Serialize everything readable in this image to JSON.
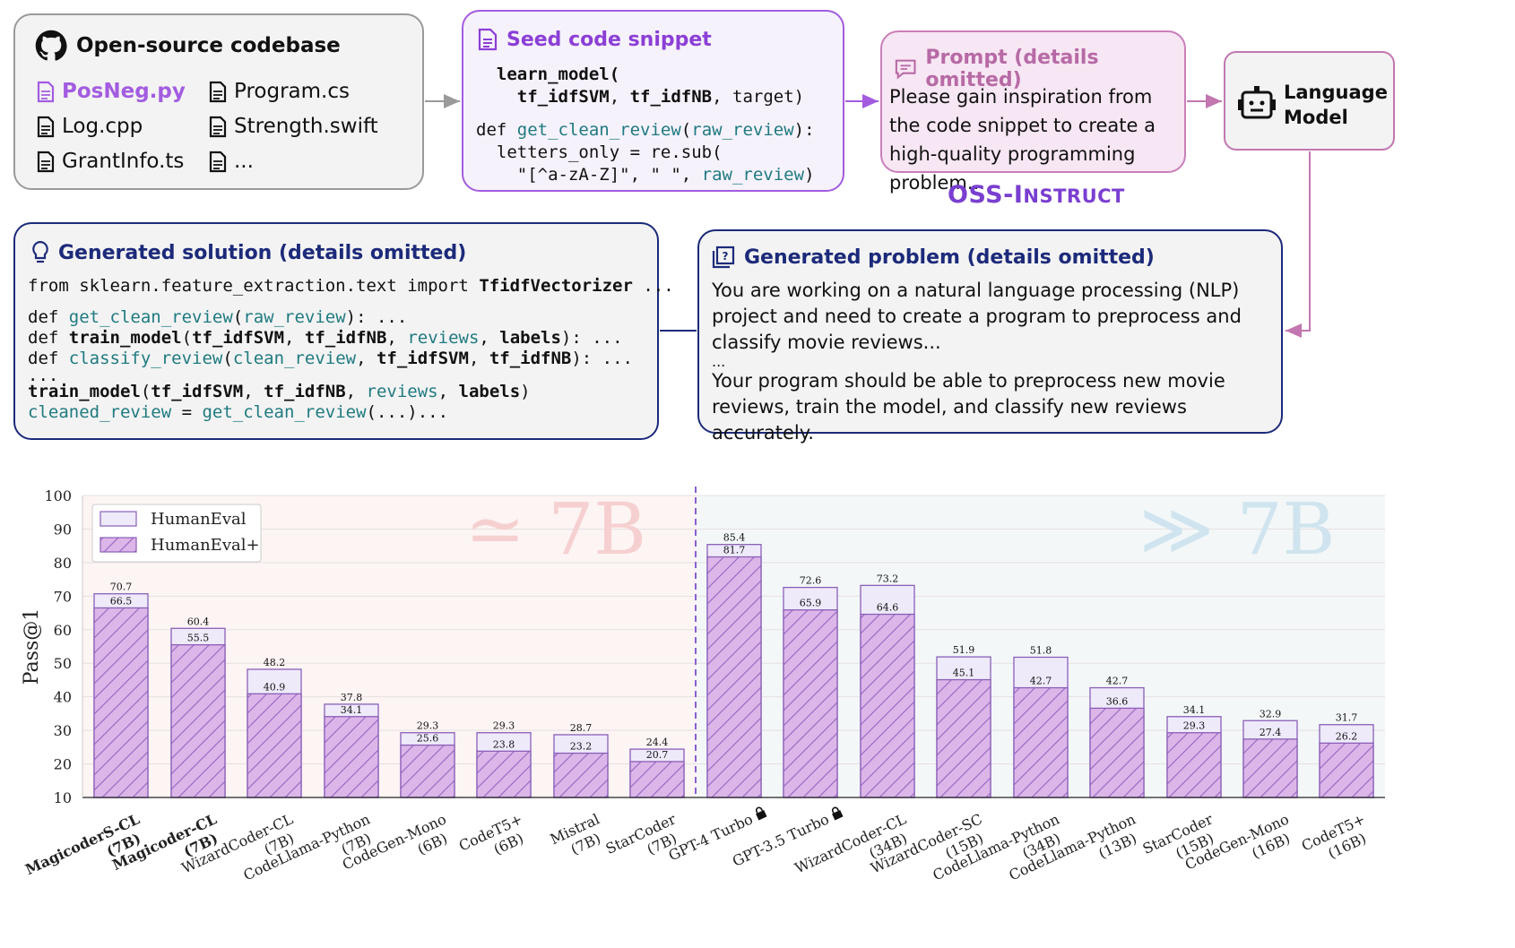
{
  "codebase": {
    "title": "Open-source codebase",
    "files": [
      {
        "name": "PosNeg.py",
        "highlight": true
      },
      {
        "name": "Program.cs",
        "highlight": false
      },
      {
        "name": "Log.cpp",
        "highlight": false
      },
      {
        "name": "Strength.swift",
        "highlight": false
      },
      {
        "name": "GrantInfo.ts",
        "highlight": false
      },
      {
        "name": "...",
        "highlight": false
      }
    ]
  },
  "seed": {
    "title": "Seed code snippet",
    "lines": [
      [
        {
          "t": "  "
        },
        {
          "t": "learn_model(",
          "s": "bold"
        }
      ],
      [
        {
          "t": "    "
        },
        {
          "t": "tf_idfSVM",
          "s": "bold"
        },
        {
          "t": ", "
        },
        {
          "t": "tf_idfNB",
          "s": "bold"
        },
        {
          "t": ", target)"
        }
      ],
      [
        {
          "t": ""
        }
      ],
      [
        {
          "t": "def "
        },
        {
          "t": "get_clean_review",
          "s": "teal"
        },
        {
          "t": "("
        },
        {
          "t": "raw_review",
          "s": "teal"
        },
        {
          "t": "):"
        }
      ],
      [
        {
          "t": "  letters_only = re.sub("
        }
      ],
      [
        {
          "t": "    \"[^a-zA-Z]\", \" \", "
        },
        {
          "t": "raw_review",
          "s": "teal"
        },
        {
          "t": ")"
        }
      ]
    ]
  },
  "prompt": {
    "title": "Prompt (details omitted)",
    "text": "Please gain inspiration from the code snippet to create a high-quality programming problem..."
  },
  "language_model": {
    "line1": "Language",
    "line2": "Model"
  },
  "oss_label": {
    "prefix": "OSS-",
    "big": "I",
    "rest": "NSTRUCT"
  },
  "solution": {
    "title": "Generated solution (details omitted)",
    "lines": [
      [
        {
          "t": "from sklearn.feature_extraction.text import "
        },
        {
          "t": "TfidfVectorizer",
          "s": "bold"
        },
        {
          "t": " ..."
        }
      ],
      [
        {
          "t": ""
        }
      ],
      [
        {
          "t": "def "
        },
        {
          "t": "get_clean_review",
          "s": "teal"
        },
        {
          "t": "("
        },
        {
          "t": "raw_review",
          "s": "teal"
        },
        {
          "t": "): ..."
        }
      ],
      [
        {
          "t": "def "
        },
        {
          "t": "train_model",
          "s": "bold"
        },
        {
          "t": "("
        },
        {
          "t": "tf_idfSVM",
          "s": "bold"
        },
        {
          "t": ", "
        },
        {
          "t": "tf_idfNB",
          "s": "bold"
        },
        {
          "t": ", "
        },
        {
          "t": "reviews",
          "s": "teal"
        },
        {
          "t": ", "
        },
        {
          "t": "labels",
          "s": "bold"
        },
        {
          "t": "): ..."
        }
      ],
      [
        {
          "t": "def "
        },
        {
          "t": "classify_review",
          "s": "teal"
        },
        {
          "t": "("
        },
        {
          "t": "clean_review",
          "s": "teal"
        },
        {
          "t": ", "
        },
        {
          "t": "tf_idfSVM",
          "s": "bold"
        },
        {
          "t": ", "
        },
        {
          "t": "tf_idfNB",
          "s": "bold"
        },
        {
          "t": "): ..."
        }
      ],
      [
        {
          "t": "..."
        }
      ],
      [
        {
          "t": "train_model",
          "s": "bold"
        },
        {
          "t": "("
        },
        {
          "t": "tf_idfSVM",
          "s": "bold"
        },
        {
          "t": ", "
        },
        {
          "t": "tf_idfNB",
          "s": "bold"
        },
        {
          "t": ", "
        },
        {
          "t": "reviews",
          "s": "teal"
        },
        {
          "t": ", "
        },
        {
          "t": "labels",
          "s": "bold"
        },
        {
          "t": ")"
        }
      ],
      [
        {
          "t": "cleaned_review",
          "s": "teal"
        },
        {
          "t": " = "
        },
        {
          "t": "get_clean_review",
          "s": "teal"
        },
        {
          "t": "(...)..."
        }
      ]
    ]
  },
  "problem": {
    "title": "Generated problem (details omitted)",
    "para1": "You are working on a natural language processing (NLP) project and need to create a program to preprocess and classify movie reviews...",
    "ellipsis": "...",
    "para2": "Your program should be able to preprocess new movie reviews, train the model, and classify new reviews accurately."
  },
  "chart_data": {
    "type": "bar",
    "ylabel": "Pass@1",
    "ylim": [
      10,
      100
    ],
    "yticks": [
      10,
      20,
      30,
      40,
      50,
      60,
      70,
      80,
      90,
      100
    ],
    "legend": {
      "placement": "top-left",
      "entries": [
        "HumanEval",
        "HumanEval+"
      ]
    },
    "region_labels": [
      "≃ 7B",
      "≫ 7B"
    ],
    "categories": [
      {
        "name": "MagicoderS-CL",
        "size": "(7B)",
        "bold": true,
        "lock": false
      },
      {
        "name": "Magicoder-CL",
        "size": "(7B)",
        "bold": true,
        "lock": false
      },
      {
        "name": "WizardCoder-CL",
        "size": "(7B)",
        "bold": false,
        "lock": false
      },
      {
        "name": "CodeLlama-Python",
        "size": "(7B)",
        "bold": false,
        "lock": false
      },
      {
        "name": "CodeGen-Mono",
        "size": "(6B)",
        "bold": false,
        "lock": false
      },
      {
        "name": "CodeT5+",
        "size": "(6B)",
        "bold": false,
        "lock": false
      },
      {
        "name": "Mistral",
        "size": "(7B)",
        "bold": false,
        "lock": false
      },
      {
        "name": "StarCoder",
        "size": "(7B)",
        "bold": false,
        "lock": false
      },
      {
        "name": "GPT-4 Turbo",
        "size": "",
        "bold": false,
        "lock": true
      },
      {
        "name": "GPT-3.5 Turbo",
        "size": "",
        "bold": false,
        "lock": true
      },
      {
        "name": "WizardCoder-CL",
        "size": "(34B)",
        "bold": false,
        "lock": false
      },
      {
        "name": "WizardCoder-SC",
        "size": "(15B)",
        "bold": false,
        "lock": false
      },
      {
        "name": "CodeLlama-Python",
        "size": "(34B)",
        "bold": false,
        "lock": false
      },
      {
        "name": "CodeLlama-Python",
        "size": "(13B)",
        "bold": false,
        "lock": false
      },
      {
        "name": "StarCoder",
        "size": "(15B)",
        "bold": false,
        "lock": false
      },
      {
        "name": "CodeGen-Mono",
        "size": "(16B)",
        "bold": false,
        "lock": false
      },
      {
        "name": "CodeT5+",
        "size": "(16B)",
        "bold": false,
        "lock": false
      }
    ],
    "series": [
      {
        "name": "HumanEval",
        "values": [
          70.7,
          60.4,
          48.2,
          37.8,
          29.3,
          29.3,
          28.7,
          24.4,
          85.4,
          72.6,
          73.2,
          51.9,
          51.8,
          42.7,
          34.1,
          32.9,
          31.7
        ]
      },
      {
        "name": "HumanEval+",
        "values": [
          66.5,
          55.5,
          40.9,
          34.1,
          25.6,
          23.8,
          23.2,
          20.7,
          81.7,
          65.9,
          64.6,
          45.1,
          42.7,
          36.6,
          29.3,
          27.4,
          26.2
        ]
      }
    ],
    "colors": {
      "humaneval": "#eeeafa",
      "humanevalplus": "#dcb6e8",
      "hatch": "#9b6cc6",
      "left_bg": "#fdf4f4",
      "right_bg": "#f3f7f8"
    }
  }
}
